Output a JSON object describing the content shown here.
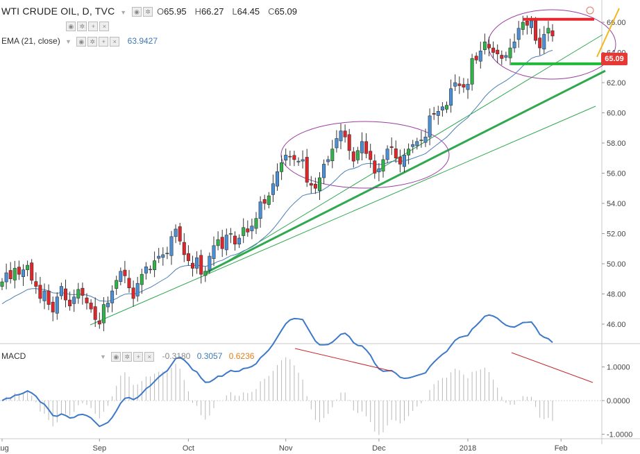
{
  "header": {
    "symbol": "WTI CRUDE OIL, D, TVC",
    "open_key": "O",
    "open": "65.95",
    "high_key": "H",
    "high": "66.27",
    "low_key": "L",
    "low": "64.45",
    "close_key": "C",
    "close": "65.09"
  },
  "ema": {
    "label": "EMA (21, close)",
    "value": "63.9427"
  },
  "macd": {
    "label": "MACD",
    "hist": "-0.3180",
    "macd": "0.3057",
    "signal": "0.6236"
  },
  "last_price": "65.09",
  "colors": {
    "up": "#2fb34a",
    "down": "#e0262b",
    "candle_alt": "#4a90d9",
    "ema": "#4a7fb5",
    "macd_line": "#3c78c8",
    "trend": "#2fa84f",
    "support": "#1fba3a",
    "resistance": "#e8262b",
    "ellipse": "#9b3ca0",
    "divergence": "#c8282b",
    "arrow": "#f2b81b"
  },
  "chart_data": {
    "type": "candlestick",
    "y_range": [
      44.8,
      67.2
    ],
    "y_ticks": [
      46,
      48,
      50,
      52,
      54,
      56,
      58,
      60,
      62,
      64,
      66
    ],
    "y_tick_labels": [
      "46.00",
      "48.00",
      "50.00",
      "52.00",
      "54.00",
      "56.00",
      "58.00",
      "60.00",
      "62.00",
      "64.00",
      "66.00"
    ],
    "x_labels": [
      {
        "label": "Aug",
        "bar": 0
      },
      {
        "label": "Sep",
        "bar": 23
      },
      {
        "label": "Oct",
        "bar": 44
      },
      {
        "label": "Nov",
        "bar": 67
      },
      {
        "label": "Dec",
        "bar": 89
      },
      {
        "label": "2018",
        "bar": 110
      },
      {
        "label": "Feb",
        "bar": 132
      }
    ],
    "closes": [
      48.8,
      49.4,
      49.0,
      49.7,
      49.3,
      49.6,
      49.9,
      48.9,
      48.5,
      47.7,
      48.2,
      47.3,
      46.8,
      47.8,
      48.5,
      47.6,
      47.2,
      47.8,
      48.3,
      47.9,
      47.4,
      47.0,
      46.3,
      46.0,
      47.3,
      47.4,
      48.2,
      48.9,
      49.5,
      49.2,
      48.4,
      47.7,
      48.7,
      49.3,
      49.8,
      49.6,
      50.2,
      50.5,
      50.6,
      50.7,
      51.8,
      52.3,
      51.5,
      50.6,
      50.2,
      49.7,
      50.4,
      49.3,
      49.5,
      50.5,
      51.2,
      51.6,
      51.0,
      51.9,
      52.0,
      51.3,
      51.7,
      52.4,
      52.1,
      52.5,
      53.0,
      54.1,
      54.0,
      54.5,
      55.3,
      56.1,
      56.7,
      57.2,
      57.1,
      56.9,
      56.8,
      56.9,
      55.4,
      55.2,
      55.0,
      55.7,
      56.6,
      56.9,
      57.6,
      58.3,
      58.8,
      58.4,
      57.5,
      56.8,
      57.5,
      58.1,
      57.3,
      56.9,
      56.0,
      56.3,
      56.9,
      57.6,
      57.7,
      57.0,
      56.6,
      57.2,
      57.6,
      57.9,
      58.1,
      58.2,
      58.4,
      59.8,
      59.9,
      60.1,
      60.4,
      60.5,
      61.6,
      62.0,
      61.8,
      61.7,
      61.9,
      63.6,
      63.5,
      64.1,
      64.7,
      64.3,
      64.0,
      63.9,
      63.6,
      63.8,
      64.3,
      64.7,
      65.6,
      66.0,
      65.8,
      66.1,
      64.8,
      64.3,
      65.2,
      65.6,
      65.09
    ],
    "ema_visible": true,
    "macd_y_ticks": [
      -1.0,
      0.0,
      1.0
    ],
    "macd_tick_labels": [
      "-1.0000",
      "0.0000",
      "1.0000"
    ],
    "macd_range": [
      -1.05,
      1.65
    ],
    "annotations": {
      "resistance_level": 66.2,
      "support_level": 63.25
    }
  }
}
